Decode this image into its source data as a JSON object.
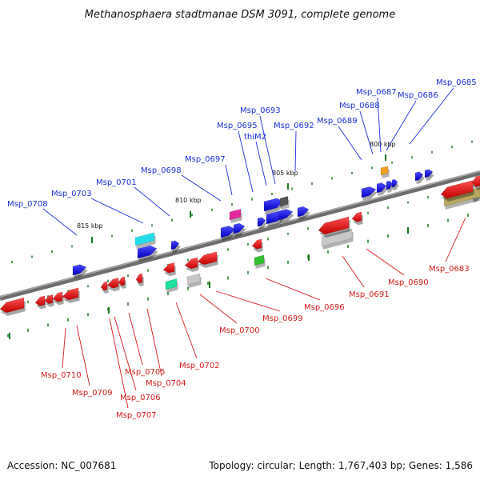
{
  "title": "Methanosphaera stadtmanae DSM 3091, complete genome",
  "footer": {
    "accession": "Accession: NC_007681",
    "summary": "Topology: circular; Length: 1,767,403 bp; Genes: 1,586"
  },
  "kbp_marks": [
    {
      "text": "815 kbp",
      "name": "kbp-815"
    },
    {
      "text": "810 kbp",
      "name": "kbp-810"
    },
    {
      "text": "805 kbp",
      "name": "kbp-805"
    },
    {
      "text": "800 kbp",
      "name": "kbp-800"
    }
  ],
  "gene_labels_top": [
    "Msp_0708",
    "Msp_0703",
    "Msp_0701",
    "Msp_0698",
    "Msp_0697",
    "Msp_0695",
    "thiM2",
    "Msp_0693",
    "Msp_0692",
    "Msp_0689",
    "Msp_0688",
    "Msp_0687",
    "Msp_0686",
    "Msp_0685"
  ],
  "gene_labels_bottom": [
    "Msp_0710",
    "Msp_0709",
    "Msp_0707",
    "Msp_0706",
    "Msp_0705",
    "Msp_0704",
    "Msp_0702",
    "Msp_0700",
    "Msp_0699",
    "Msp_0696",
    "Msp_0691",
    "Msp_0690",
    "Msp_0683"
  ],
  "colors": {
    "forward": "#1010ee",
    "reverse": "#ee1010",
    "connector_top": "#1a2fd6",
    "connector_bottom": "#d61a1a",
    "tick": "#1a7a1a",
    "backbone": "#8a8a8a",
    "cyan": "#22dde8",
    "magenta": "#e02a9a",
    "green": "#30c030",
    "teal": "#20e0a0",
    "orange": "#f0a020",
    "silver": "#c8c8c8",
    "olive": "#b8a860"
  }
}
